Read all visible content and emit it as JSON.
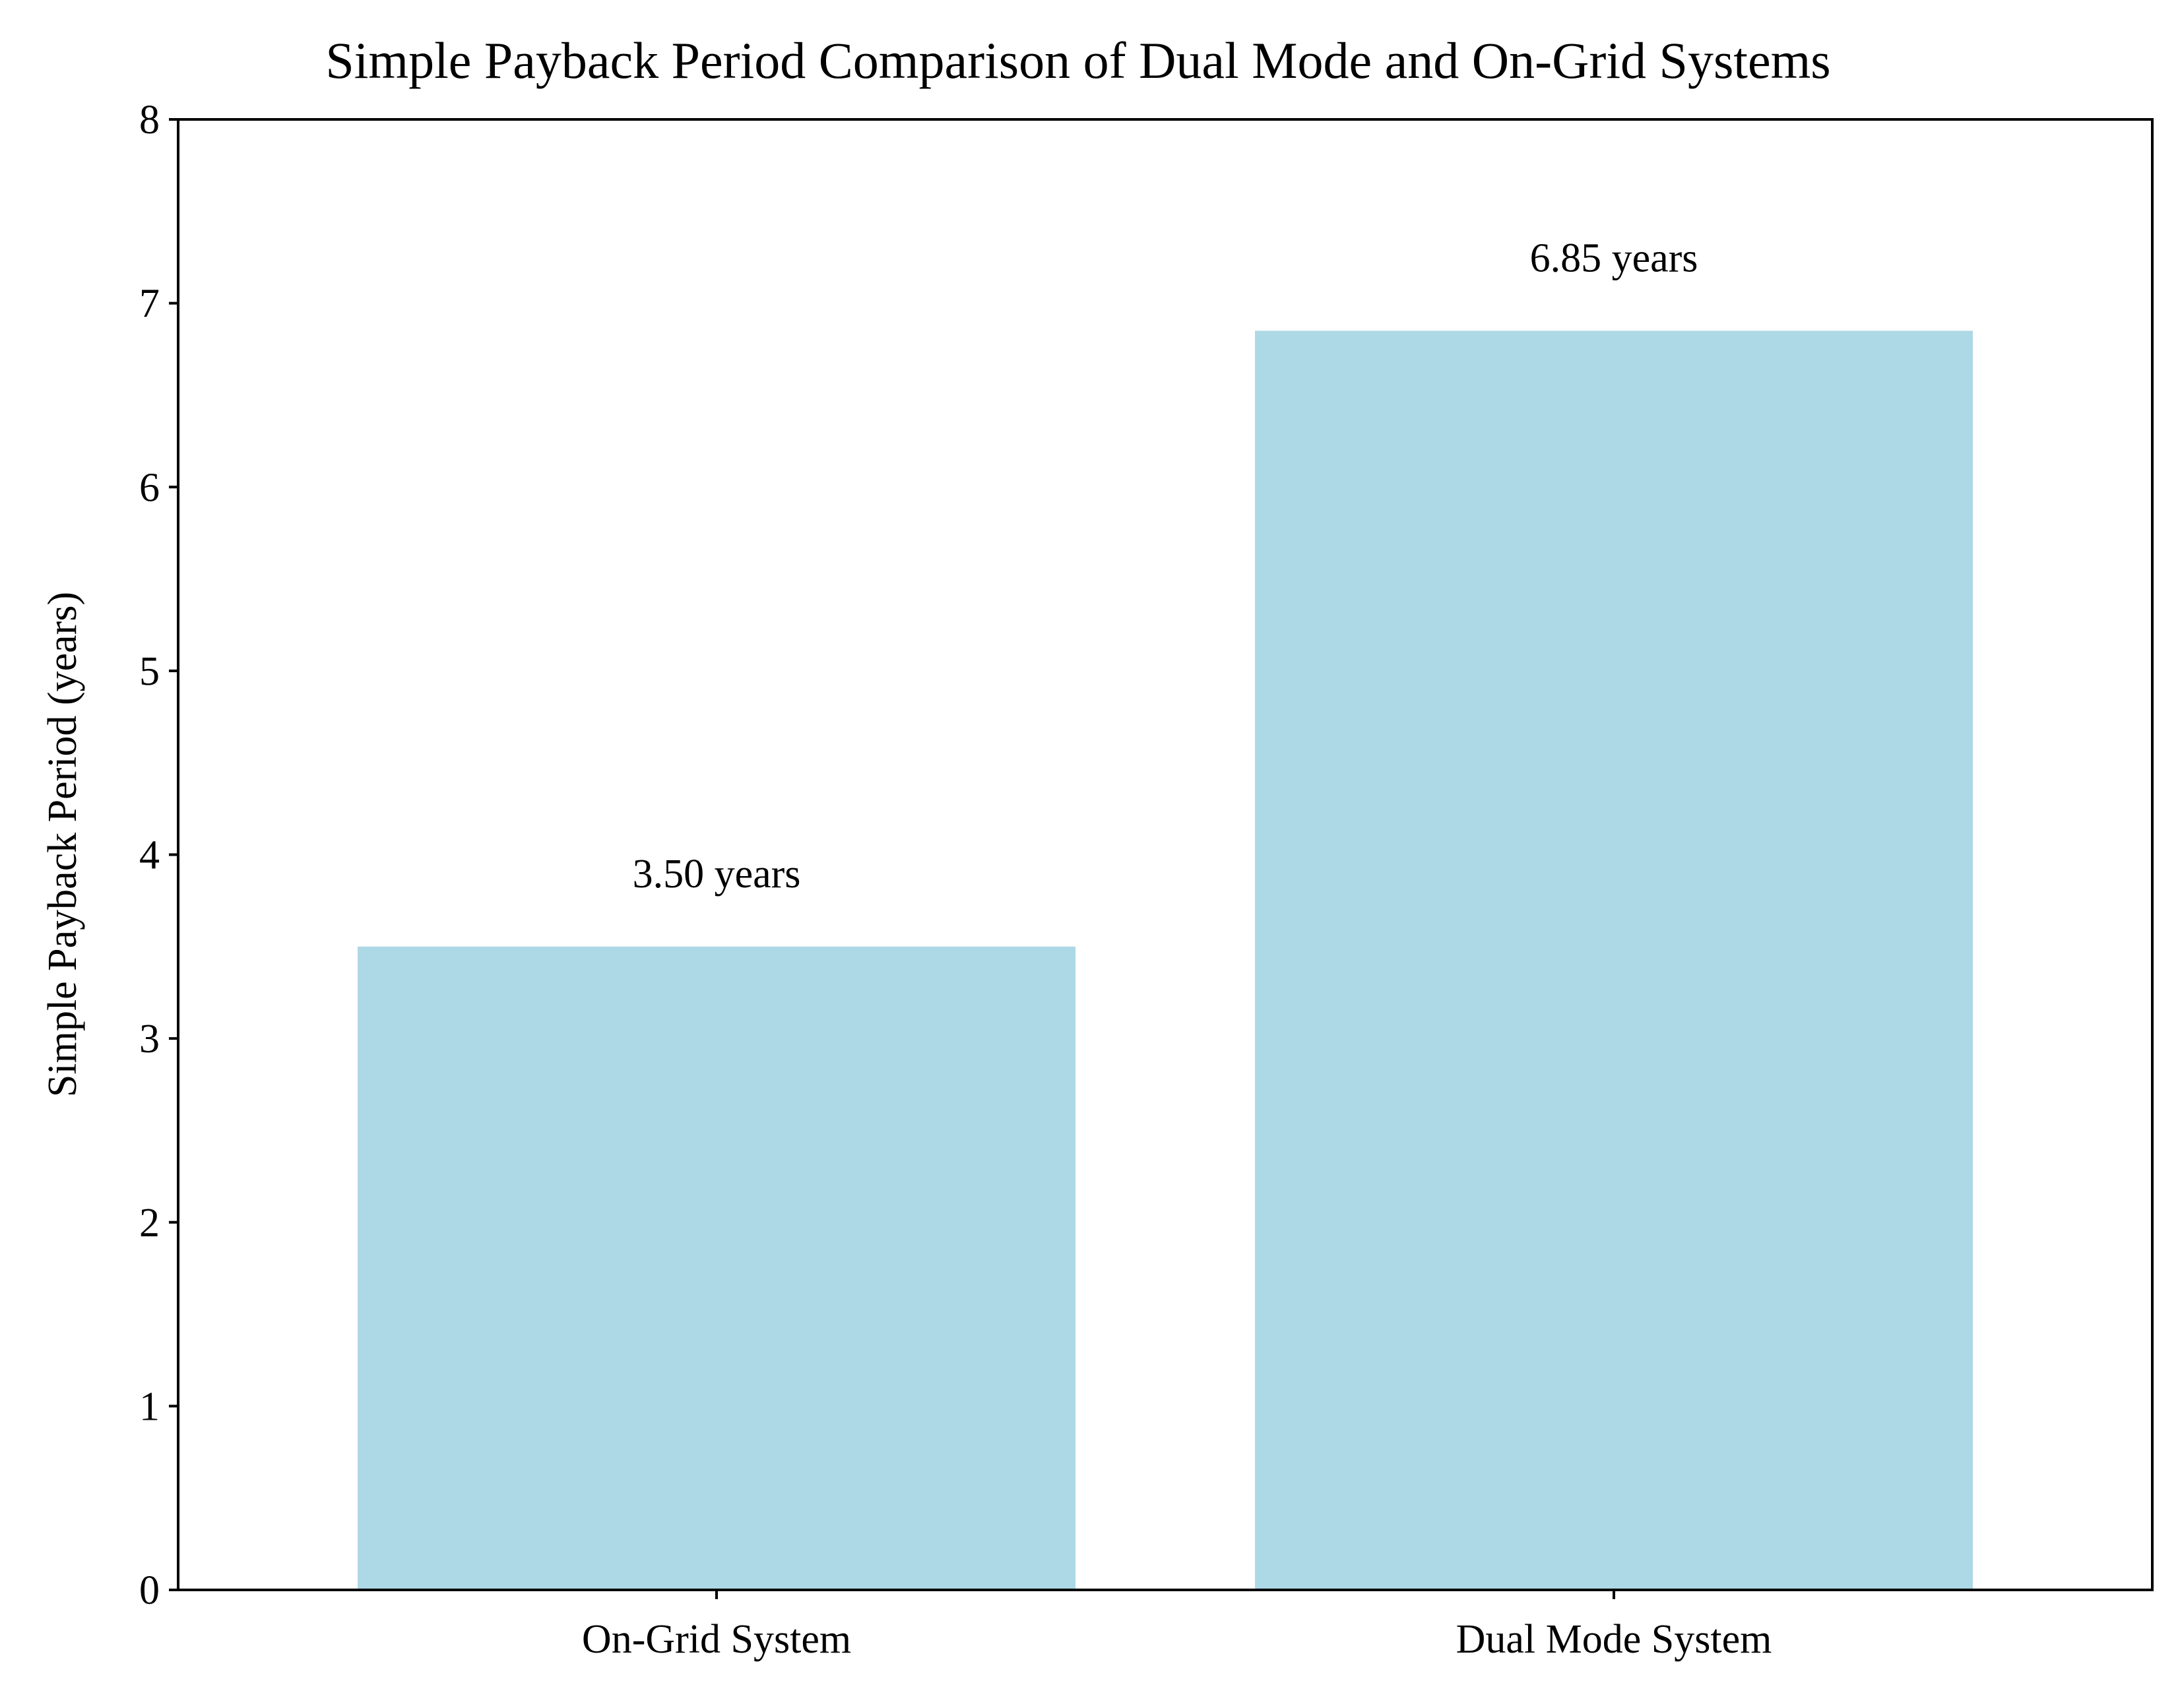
{
  "chart_data": {
    "type": "bar",
    "title": "Simple Payback Period Comparison of Dual Mode and On-Grid Systems",
    "xlabel": "",
    "ylabel": "Simple Payback Period (years)",
    "categories": [
      "On-Grid System",
      "Dual Mode System"
    ],
    "values": [
      3.5,
      6.85
    ],
    "data_labels": [
      "3.50 years",
      "6.85 years"
    ],
    "ylim": [
      0,
      8
    ],
    "yticks": [
      "0",
      "1",
      "2",
      "3",
      "4",
      "5",
      "6",
      "7",
      "8"
    ],
    "grid": false,
    "legend": "none",
    "colors": {
      "bar": "#add8e6",
      "axis": "#000000",
      "text": "#000000",
      "background": "#ffffff"
    }
  }
}
